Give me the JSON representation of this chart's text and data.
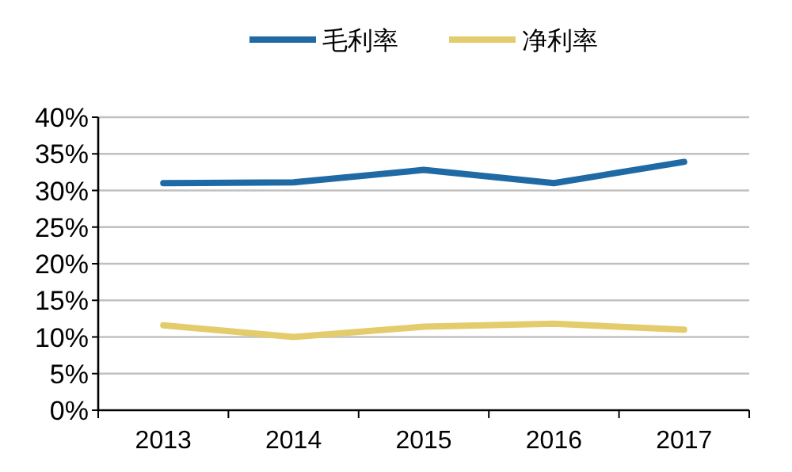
{
  "chart_data": {
    "type": "line",
    "categories": [
      "2013",
      "2014",
      "2015",
      "2016",
      "2017"
    ],
    "series": [
      {
        "name": "毛利率",
        "color": "#1f6aa5",
        "values": [
          31.0,
          31.1,
          32.8,
          31.0,
          33.9
        ]
      },
      {
        "name": "净利率",
        "color": "#e3cc6c",
        "values": [
          11.6,
          10.0,
          11.4,
          11.8,
          11.0
        ]
      }
    ],
    "ylim": [
      0,
      40
    ],
    "yticks": [
      {
        "value": 0,
        "label": "0%"
      },
      {
        "value": 5,
        "label": "5%"
      },
      {
        "value": 10,
        "label": "10%"
      },
      {
        "value": 15,
        "label": "15%"
      },
      {
        "value": 20,
        "label": "20%"
      },
      {
        "value": 25,
        "label": "25%"
      },
      {
        "value": 30,
        "label": "30%"
      },
      {
        "value": 35,
        "label": "35%"
      },
      {
        "value": 40,
        "label": "40%"
      }
    ],
    "grid": "y",
    "legend": "top",
    "marker": "none",
    "line_style": "solid"
  }
}
